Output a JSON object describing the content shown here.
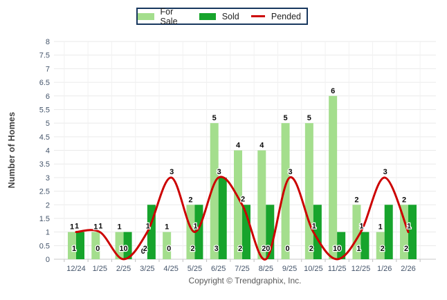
{
  "legend": {
    "for_sale_label": "For Sale",
    "sold_label": "Sold",
    "pended_label": "Pended"
  },
  "footer": {
    "copyright": "Copyright © Trendgraphix, Inc."
  },
  "colors": {
    "for_sale": "#A4DE8D",
    "sold": "#17A42C",
    "pended": "#CC0000",
    "grid": "#EAEAEA",
    "axis_line": "#C9C9C9",
    "tick_text": "#44546A",
    "legend_border": "#17375E",
    "data_label": "#0a0a0a"
  },
  "chart_data": {
    "type": "bar",
    "title": "",
    "xlabel": "",
    "ylabel": "Number of Homes",
    "ylim": [
      0,
      8
    ],
    "ytick_step": 0.5,
    "grid": true,
    "legend_position": "top-center",
    "categories": [
      "12/24",
      "1/25",
      "2/25",
      "3/25",
      "4/25",
      "5/25",
      "6/25",
      "7/25",
      "8/25",
      "9/25",
      "10/25",
      "11/25",
      "12/25",
      "1/26",
      "2/26"
    ],
    "series": [
      {
        "name": "For Sale",
        "type": "bar",
        "color": "#A4DE8D",
        "values": [
          1,
          1,
          1,
          0,
          1,
          2,
          5,
          4,
          4,
          5,
          5,
          6,
          2,
          1,
          2
        ]
      },
      {
        "name": "Sold",
        "type": "bar",
        "color": "#17A42C",
        "values": [
          1,
          0,
          1,
          2,
          0,
          2,
          3,
          2,
          2,
          0,
          2,
          1,
          1,
          2,
          2
        ]
      },
      {
        "name": "Pended",
        "type": "line",
        "color": "#CC0000",
        "values": [
          1,
          1,
          0,
          1,
          3,
          1,
          3,
          2,
          0,
          3,
          1,
          0,
          1,
          3,
          1
        ]
      }
    ]
  }
}
